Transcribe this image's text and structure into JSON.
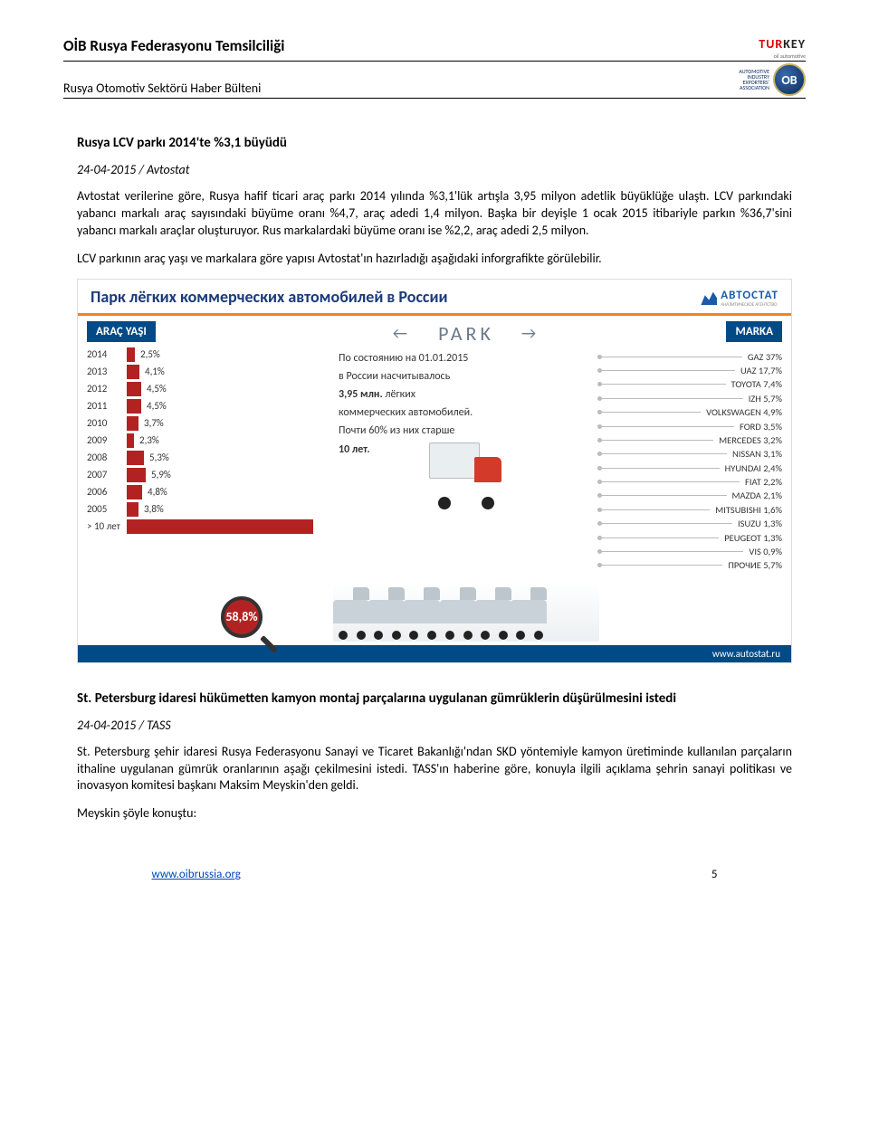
{
  "header": {
    "org": "OİB Rusya Federasyonu Temsilciliği",
    "bulletin": "Rusya Otomotiv Sektörü Haber Bülteni",
    "turkey_logo_red": "TUR",
    "turkey_logo_black": "KEY",
    "turkey_tag": "oil automotive",
    "oib_lines": [
      "AUTOMOTIVE",
      "INDUSTRY",
      "EXPORTERS'",
      "ASSOCIATION"
    ],
    "oib_badge": "OB"
  },
  "article1": {
    "title": "Rusya LCV parkı 2014'te %3,1 büyüdü",
    "meta": "24-04-2015 / Avtostat",
    "p1": "Avtostat verilerine göre, Rusya hafif ticari araç parkı 2014 yılında %3,1'lük artışla 3,95 milyon adetlik büyüklüğe ulaştı. LCV parkındaki yabancı markalı araç sayısındaki büyüme oranı %4,7, araç adedi 1,4 milyon. Başka bir deyişle 1 ocak 2015 itibariyle parkın %36,7'sini yabancı markalı araçlar oluşturuyor. Rus markalardaki büyüme oranı ise %2,2, araç adedi 2,5 milyon.",
    "p2": "LCV parkının araç yaşı ve markalara göre yapısı Avtostat'ın hazırladığı aşağıdaki inforgrafikte görülebilir."
  },
  "infographic": {
    "title": "Парк лёгких коммерческих автомобилей в России",
    "brand_logo": "АВТОСТАТ",
    "brand_sub": "АНАЛИТИЧЕСКОЕ АГЕНТСТВО",
    "col_age_header": "ARAÇ YAŞI",
    "col_park_header": "PARK",
    "col_brand_header": "MARKA",
    "arrow_left": "←",
    "arrow_right": "→",
    "mid_text_1": "По состоянию на 01.01.2015",
    "mid_text_2": "в России насчитывалось",
    "mid_text_3_bold": "3,95 млн.",
    "mid_text_3_rest": " лёгких",
    "mid_text_4": "коммерческих автомобилей.",
    "mid_text_5": "Почти 60% из них старше",
    "mid_text_6_bold": "10 лет.",
    "footer_url": "www.autostat.ru",
    "colors": {
      "bar": "#b32222",
      "header_bg": "#004a87",
      "accent": "#f58220",
      "title": "#1a3a7a"
    },
    "age_bars": {
      "max_pct": 60,
      "rows": [
        {
          "label": "2014",
          "pct": "2,5%",
          "val": 2.5
        },
        {
          "label": "2013",
          "pct": "4,1%",
          "val": 4.1
        },
        {
          "label": "2012",
          "pct": "4,5%",
          "val": 4.5
        },
        {
          "label": "2011",
          "pct": "4,5%",
          "val": 4.5
        },
        {
          "label": "2010",
          "pct": "3,7%",
          "val": 3.7
        },
        {
          "label": "2009",
          "pct": "2,3%",
          "val": 2.3
        },
        {
          "label": "2008",
          "pct": "5,3%",
          "val": 5.3
        },
        {
          "label": "2007",
          "pct": "5,9%",
          "val": 5.9
        },
        {
          "label": "2006",
          "pct": "4,8%",
          "val": 4.8
        },
        {
          "label": "2005",
          "pct": "3,8%",
          "val": 3.8
        },
        {
          "label": "> 10 лет",
          "pct": "58,8%",
          "val": 58.8
        }
      ]
    },
    "brands": [
      {
        "name": "GAZ 37%"
      },
      {
        "name": "UAZ 17,7%"
      },
      {
        "name": "TOYOTA 7,4%"
      },
      {
        "name": "IZH 5,7%"
      },
      {
        "name": "VOLKSWAGEN 4,9%"
      },
      {
        "name": "FORD 3,5%"
      },
      {
        "name": "MERCEDES 3,2%"
      },
      {
        "name": "NISSAN 3,1%"
      },
      {
        "name": "HYUNDAI 2,4%"
      },
      {
        "name": "FIAT 2,2%"
      },
      {
        "name": "MAZDA 2,1%"
      },
      {
        "name": "MITSUBISHI 1,6%"
      },
      {
        "name": "ISUZU 1,3%"
      },
      {
        "name": "PEUGEOT 1,3%"
      },
      {
        "name": "VIS 0,9%"
      },
      {
        "name": "ПРОЧИЕ 5,7%"
      }
    ]
  },
  "article2": {
    "title": "St. Petersburg idaresi hükümetten kamyon montaj parçalarına uygulanan gümrüklerin düşürülmesini istedi",
    "meta": "24-04-2015 / TASS",
    "p1": "St. Petersburg şehir idaresi Rusya Federasyonu Sanayi ve Ticaret Bakanlığı'ndan SKD yöntemiyle kamyon üretiminde kullanılan parçaların ithaline uygulanan gümrük oranlarının aşağı çekilmesini istedi. TASS'ın haberine göre, konuyla ilgili açıklama şehrin sanayi politikası ve inovasyon komitesi başkanı Maksim Meyskin'den geldi.",
    "p2": "Meyskin şöyle konuştu:"
  },
  "footer": {
    "url": "www.oibrussia.org",
    "page": "5"
  }
}
